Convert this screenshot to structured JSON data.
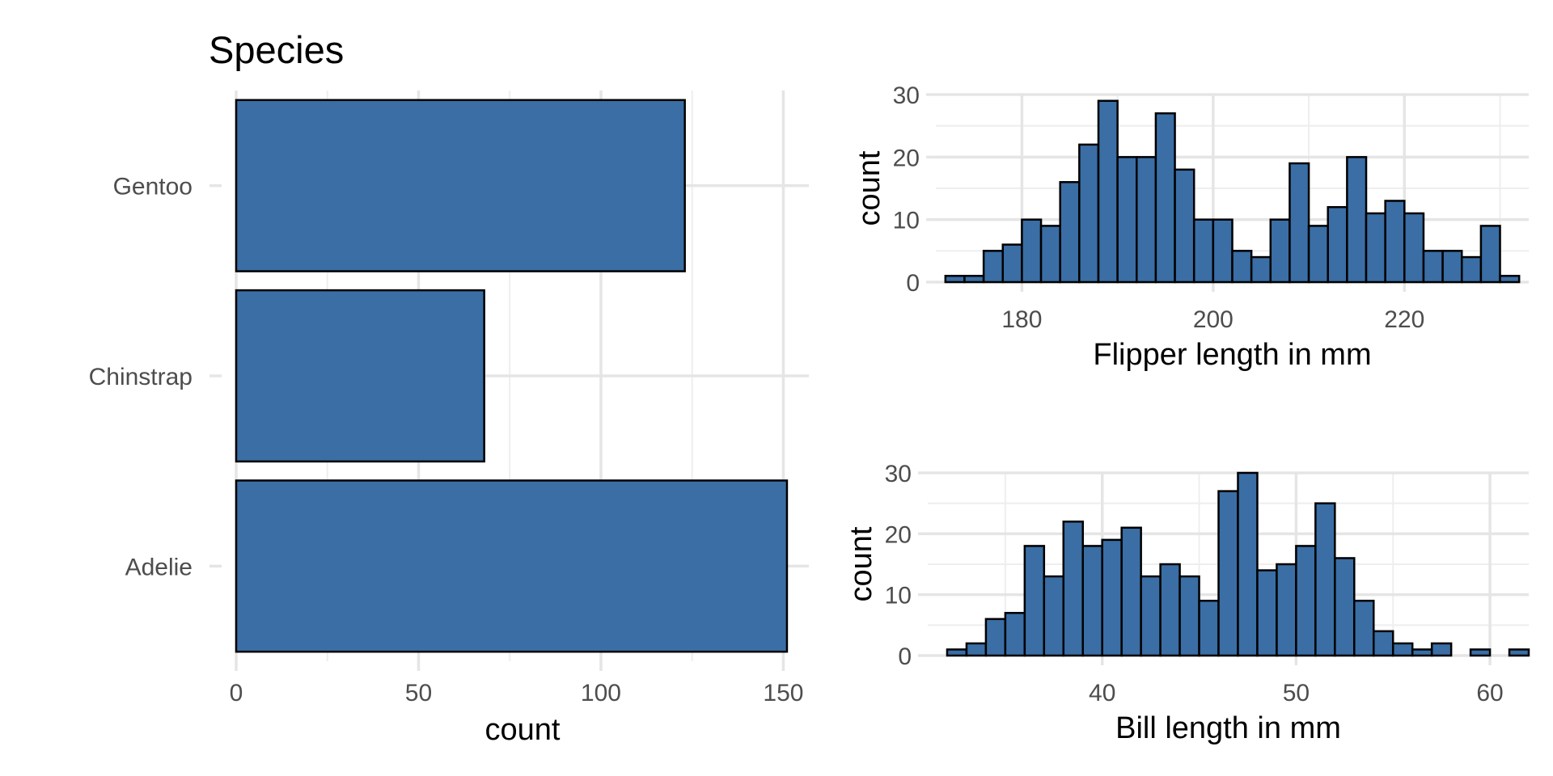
{
  "colors": {
    "bar_fill": "#3A6EA5",
    "bar_stroke": "#000000"
  },
  "chart_data": [
    {
      "id": "species",
      "type": "bar",
      "orientation": "horizontal",
      "title": "Species",
      "xlabel": "count",
      "ylabel": "",
      "categories": [
        "Adelie",
        "Chinstrap",
        "Gentoo"
      ],
      "values": [
        151,
        68,
        123
      ],
      "xlim": [
        0,
        157
      ],
      "xticks": [
        0,
        50,
        100,
        150
      ],
      "grid": true
    },
    {
      "id": "flipper",
      "type": "bar",
      "subtype": "histogram",
      "title": "",
      "xlabel": "Flipper length in mm",
      "ylabel": "count",
      "bin_start": 172,
      "bin_width": 2,
      "counts": [
        1,
        1,
        5,
        6,
        10,
        9,
        16,
        22,
        29,
        20,
        20,
        27,
        18,
        10,
        10,
        5,
        4,
        10,
        19,
        9,
        12,
        20,
        11,
        13,
        11,
        5,
        5,
        4,
        9,
        1
      ],
      "xlim": [
        171,
        233
      ],
      "ylim": [
        0,
        30
      ],
      "xticks": [
        180,
        200,
        220
      ],
      "yticks": [
        0,
        10,
        20,
        30
      ],
      "grid": true
    },
    {
      "id": "bill",
      "type": "bar",
      "subtype": "histogram",
      "title": "",
      "xlabel": "Bill length in mm",
      "ylabel": "count",
      "bin_start": 32,
      "bin_width": 1,
      "counts": [
        1,
        2,
        6,
        7,
        18,
        13,
        22,
        18,
        19,
        21,
        13,
        15,
        13,
        9,
        27,
        30,
        14,
        15,
        18,
        25,
        16,
        9,
        4,
        2,
        1,
        2,
        0,
        1,
        0,
        1
      ],
      "xlim": [
        31,
        62
      ],
      "ylim": [
        0,
        30
      ],
      "xticks": [
        40,
        50,
        60
      ],
      "yticks": [
        0,
        10,
        20,
        30
      ],
      "grid": true
    }
  ]
}
